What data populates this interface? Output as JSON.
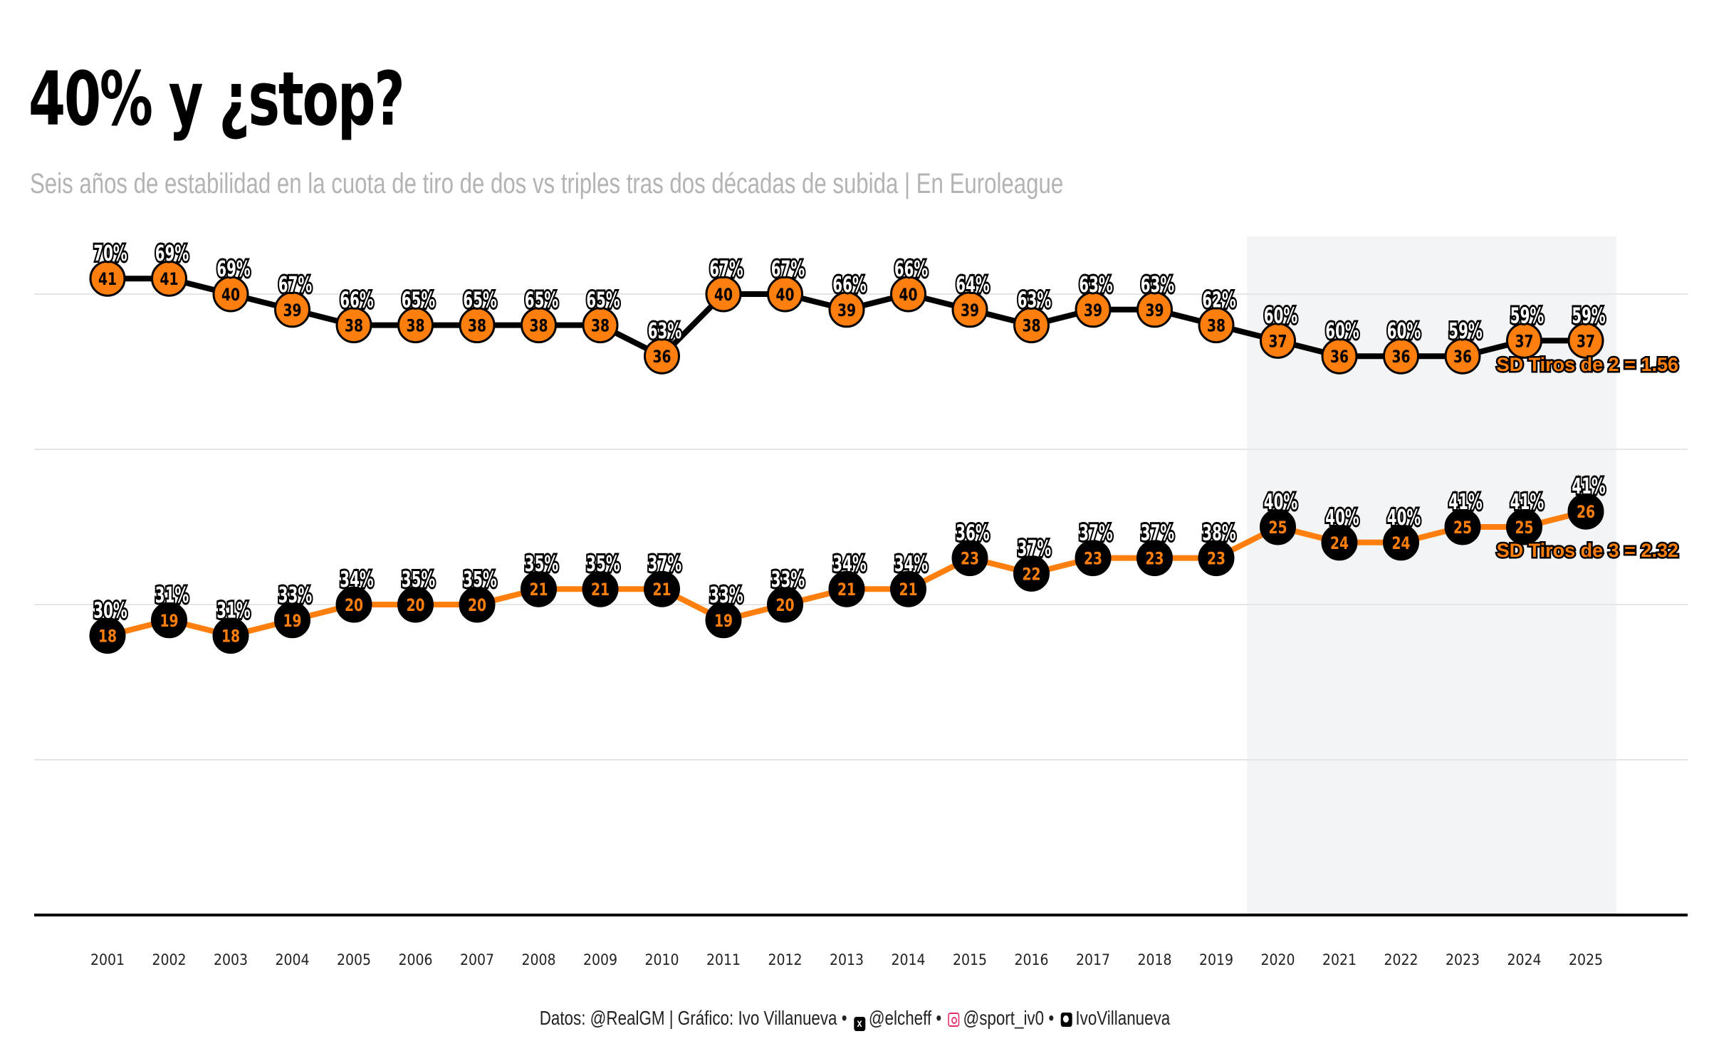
{
  "header": {
    "title": "40% y ¿stop?",
    "subtitle": "Seis años de estabilidad en la cuota de tiro de dos vs triples tras dos décadas de subida | En Euroleague"
  },
  "footer": {
    "datos": "Datos: @RealGM | Gráfico: Ivo Villanueva",
    "sep": "•",
    "twitter": "@elcheff",
    "instagram": "@sport_iv0",
    "github": "IvoVillanueva",
    "twitter_icon": "x-icon",
    "instagram_icon": "instagram-icon",
    "github_icon": "github-icon"
  },
  "colors": {
    "orange": "#ff7f0e",
    "black": "#000000",
    "highlight_band": "#f3f4f6",
    "grid": "#e6e6e6"
  },
  "chart_data": {
    "type": "line",
    "categories": [
      "2001",
      "2002",
      "2003",
      "2004",
      "2005",
      "2006",
      "2007",
      "2008",
      "2009",
      "2010",
      "2011",
      "2012",
      "2013",
      "2014",
      "2015",
      "2016",
      "2017",
      "2018",
      "2019",
      "2020",
      "2021",
      "2022",
      "2023",
      "2024",
      "2025"
    ],
    "ylim": [
      0,
      45
    ],
    "highlight_range": [
      "2020",
      "2025"
    ],
    "series": [
      {
        "name": "Tiros de 2",
        "values": [
          41,
          41,
          40,
          39,
          38,
          38,
          38,
          38,
          38,
          36,
          40,
          40,
          39,
          40,
          39,
          38,
          39,
          39,
          38,
          37,
          36,
          36,
          36,
          37,
          37
        ],
        "pct_labels": [
          "70%",
          "69%",
          "69%",
          "67%",
          "66%",
          "65%",
          "65%",
          "65%",
          "65%",
          "63%",
          "67%",
          "67%",
          "66%",
          "66%",
          "64%",
          "63%",
          "63%",
          "63%",
          "62%",
          "60%",
          "60%",
          "60%",
          "59%",
          "59%",
          "59%"
        ],
        "line_color": "#000000",
        "point_fill": "#ff7f0e",
        "point_text": "#000000",
        "sd_label": "SD Tiros de 2 = 1.56"
      },
      {
        "name": "Tiros de 3",
        "values": [
          18,
          19,
          18,
          19,
          20,
          20,
          20,
          21,
          21,
          21,
          19,
          20,
          21,
          21,
          23,
          22,
          23,
          23,
          23,
          25,
          24,
          24,
          25,
          25,
          26
        ],
        "pct_labels": [
          "30%",
          "31%",
          "31%",
          "33%",
          "34%",
          "35%",
          "35%",
          "35%",
          "35%",
          "37%",
          "33%",
          "33%",
          "34%",
          "34%",
          "36%",
          "37%",
          "37%",
          "37%",
          "38%",
          "40%",
          "40%",
          "40%",
          "41%",
          "41%",
          "41%"
        ],
        "line_color": "#ff7f0e",
        "point_fill": "#000000",
        "point_text": "#ff7f0e",
        "sd_label": "SD Tiros de 3 = 2.32"
      }
    ]
  }
}
